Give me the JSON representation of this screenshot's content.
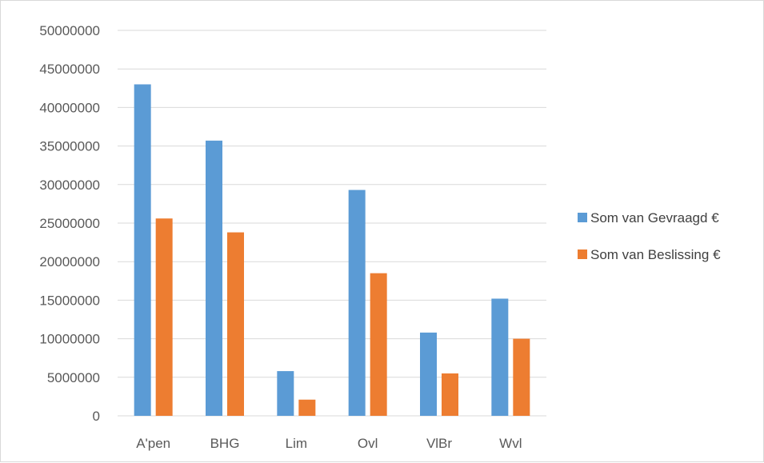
{
  "chart_data": {
    "type": "bar",
    "categories": [
      "A'pen",
      "BHG",
      "Lim",
      "Ovl",
      "VlBr",
      "Wvl"
    ],
    "series": [
      {
        "name": "Som van Gevraagd €",
        "color": "#5b9bd5",
        "values": [
          43000000,
          35700000,
          5800000,
          29300000,
          10800000,
          15200000
        ]
      },
      {
        "name": "Som van Beslissing €",
        "color": "#ed7d31",
        "values": [
          25600000,
          23800000,
          2100000,
          18500000,
          5500000,
          10000000
        ]
      }
    ],
    "y_ticks": [
      "0",
      "5000000",
      "10000000",
      "15000000",
      "20000000",
      "25000000",
      "30000000",
      "35000000",
      "40000000",
      "45000000",
      "50000000"
    ],
    "ylim": [
      0,
      50000000
    ],
    "grid": true,
    "legend_position": "right",
    "title": "",
    "xlabel": "",
    "ylabel": ""
  }
}
